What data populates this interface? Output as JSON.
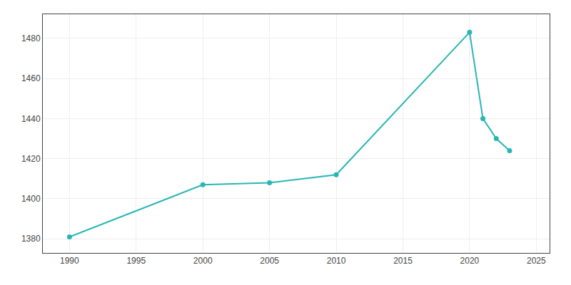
{
  "chart_data": {
    "type": "line",
    "x": [
      1990,
      2000,
      2005,
      2010,
      2020,
      2021,
      2022,
      2023
    ],
    "values": [
      1381,
      1407,
      1408,
      1412,
      1483,
      1440,
      1430,
      1424
    ],
    "color": "#2ab5b5",
    "marker": "circle",
    "xlim": [
      1988,
      2026
    ],
    "ylim": [
      1373,
      1492
    ],
    "xticks": [
      1990,
      1995,
      2000,
      2005,
      2010,
      2015,
      2020,
      2025
    ],
    "yticks": [
      1380,
      1400,
      1420,
      1440,
      1460,
      1480
    ],
    "grid": true
  }
}
